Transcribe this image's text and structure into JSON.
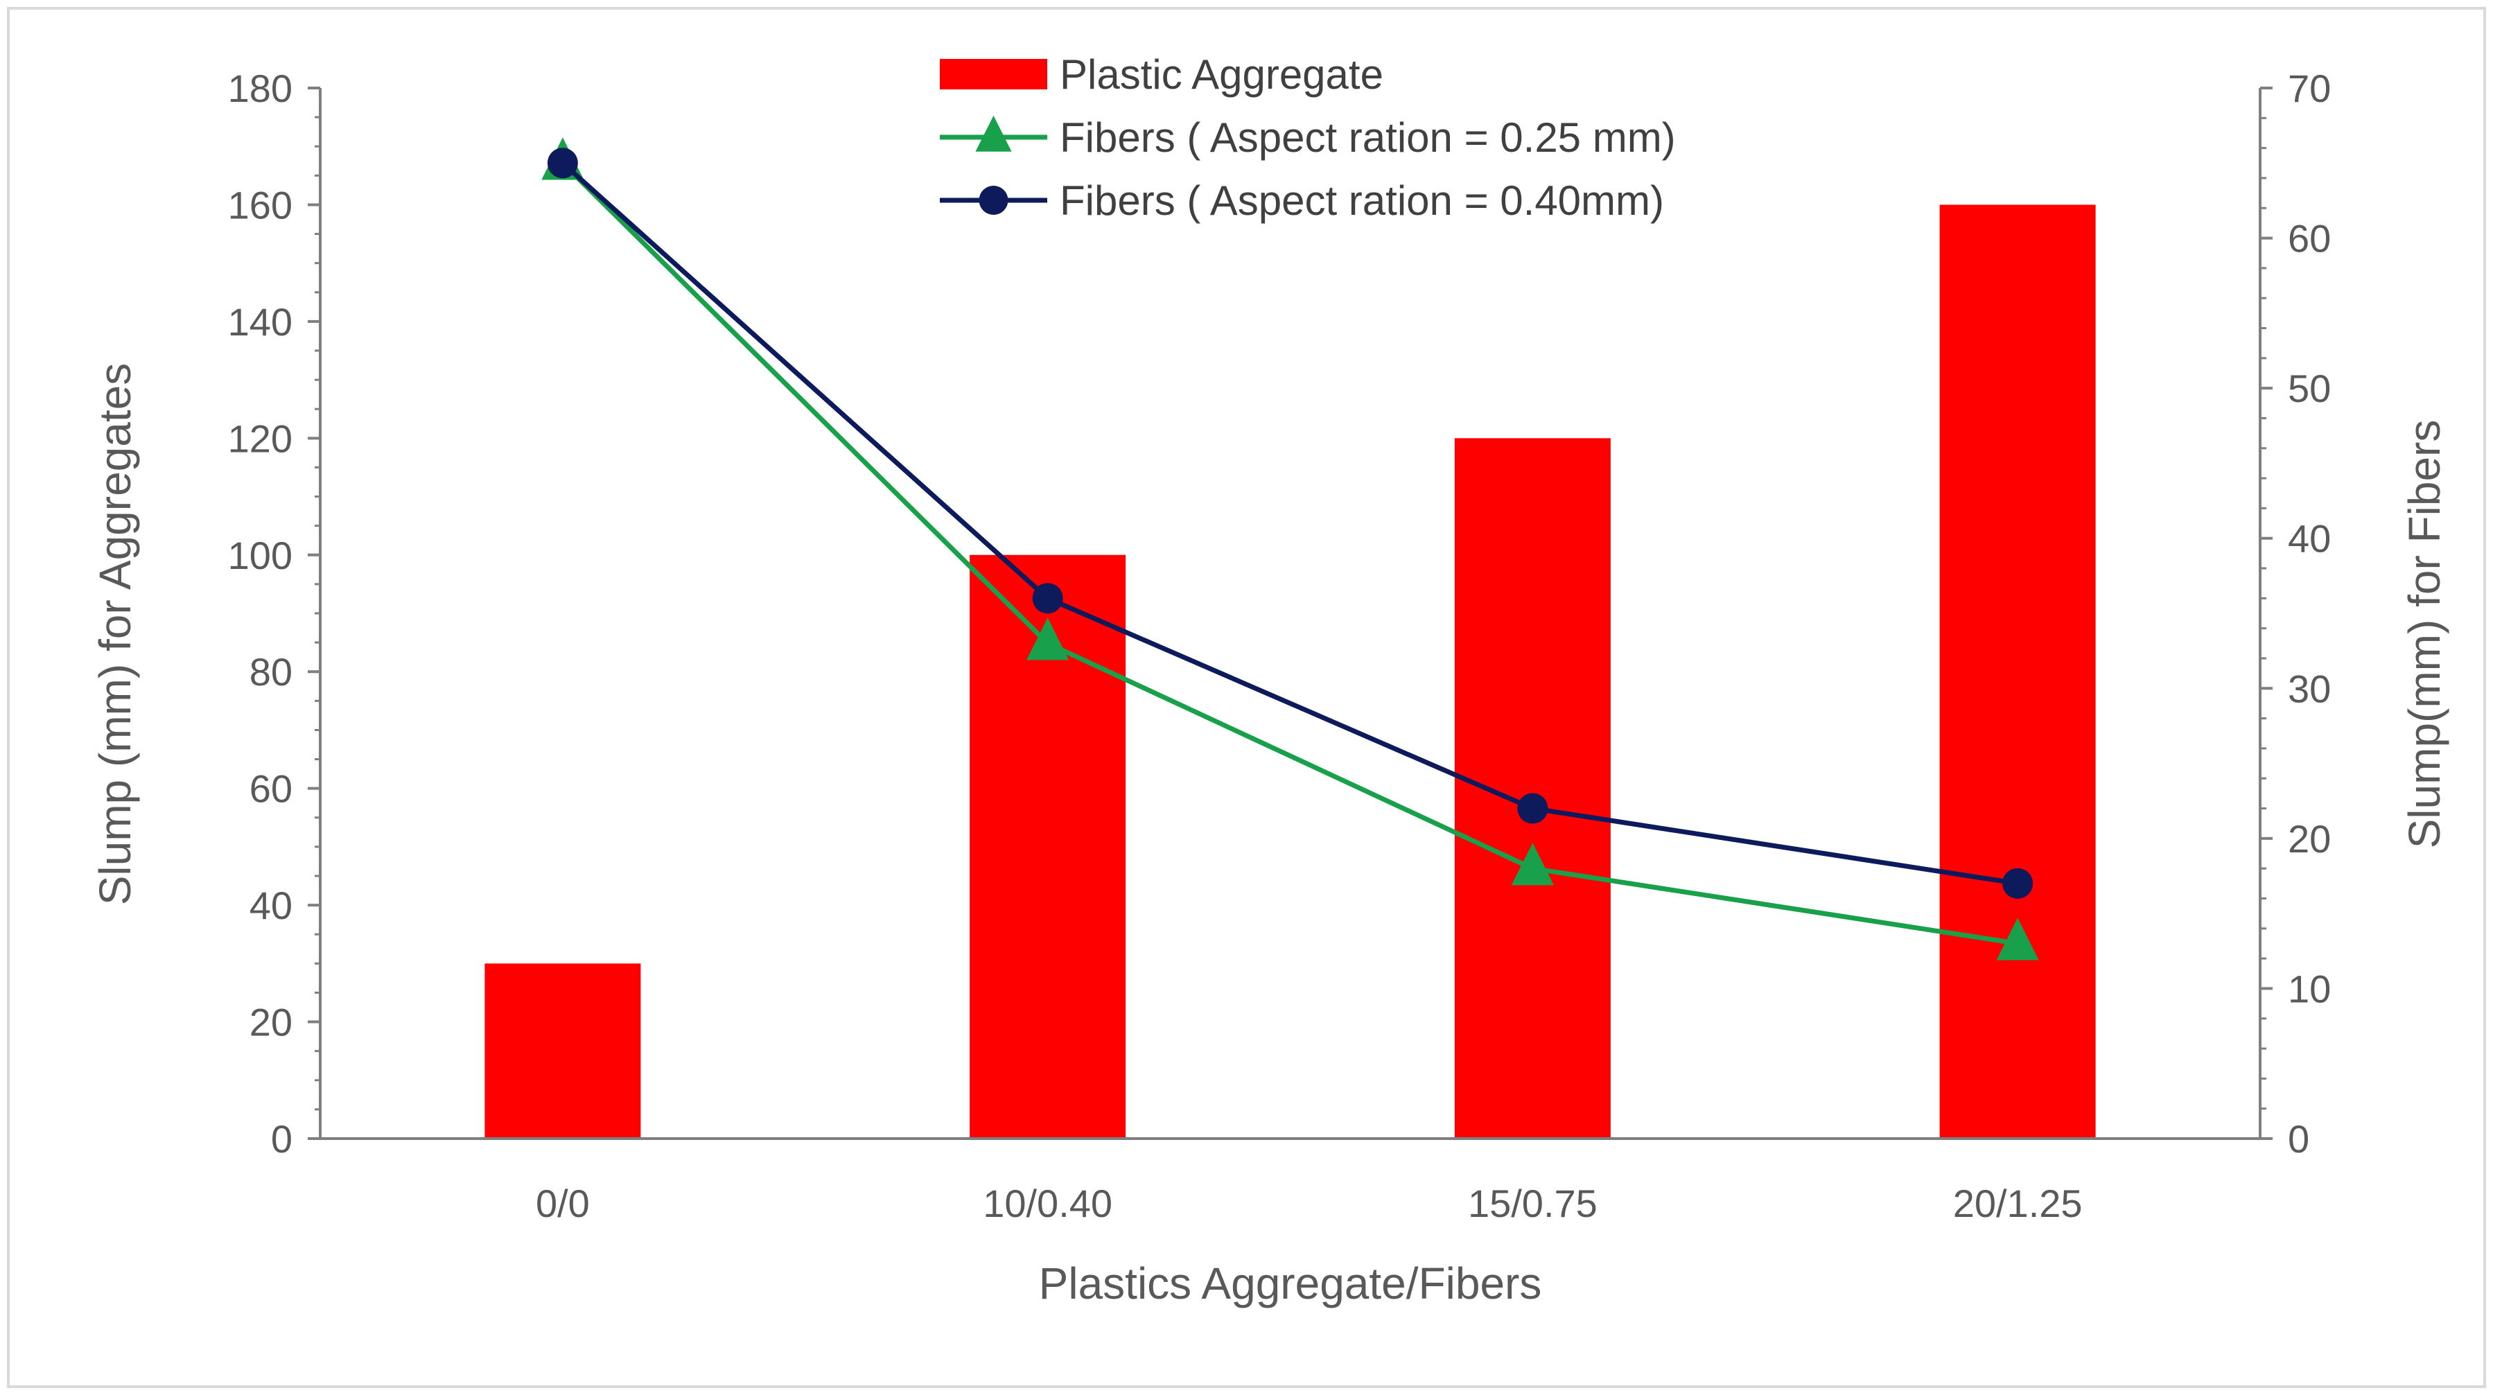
{
  "chart_data": {
    "type": "bar",
    "title": "",
    "categories": [
      "0/0",
      "10/0.40",
      "15/0.75",
      "20/1.25"
    ],
    "xlabel": "Plastics Aggregate/Fibers",
    "ylabel": "Slump (mm) for Aggregates",
    "y2label": "Slump(mm) for Fibers",
    "ylim": [
      0,
      180
    ],
    "y2lim": [
      0,
      70
    ],
    "yticks": [
      0,
      20,
      40,
      60,
      80,
      100,
      120,
      140,
      160,
      180
    ],
    "y2ticks": [
      0,
      10,
      20,
      30,
      40,
      50,
      60,
      70
    ],
    "grid": false,
    "legend_position": "top-center",
    "series": [
      {
        "name": "Plastic Aggregate",
        "type": "bar",
        "axis": "left",
        "color": "#ff0000",
        "values": [
          30,
          100,
          120,
          160
        ]
      },
      {
        "name": "Fibers ( Aspect ration = 0.25 mm)",
        "type": "line",
        "marker": "triangle",
        "axis": "right",
        "color": "#19a04a",
        "values": [
          65,
          33,
          18,
          13
        ]
      },
      {
        "name": "Fibers ( Aspect ration = 0.40mm)",
        "type": "line",
        "marker": "circle",
        "axis": "right",
        "color": "#0d1a5c",
        "values": [
          65,
          36,
          22,
          17
        ]
      }
    ],
    "axis_color": "#7f7f7f",
    "frame_color": "#d9d9d9"
  }
}
